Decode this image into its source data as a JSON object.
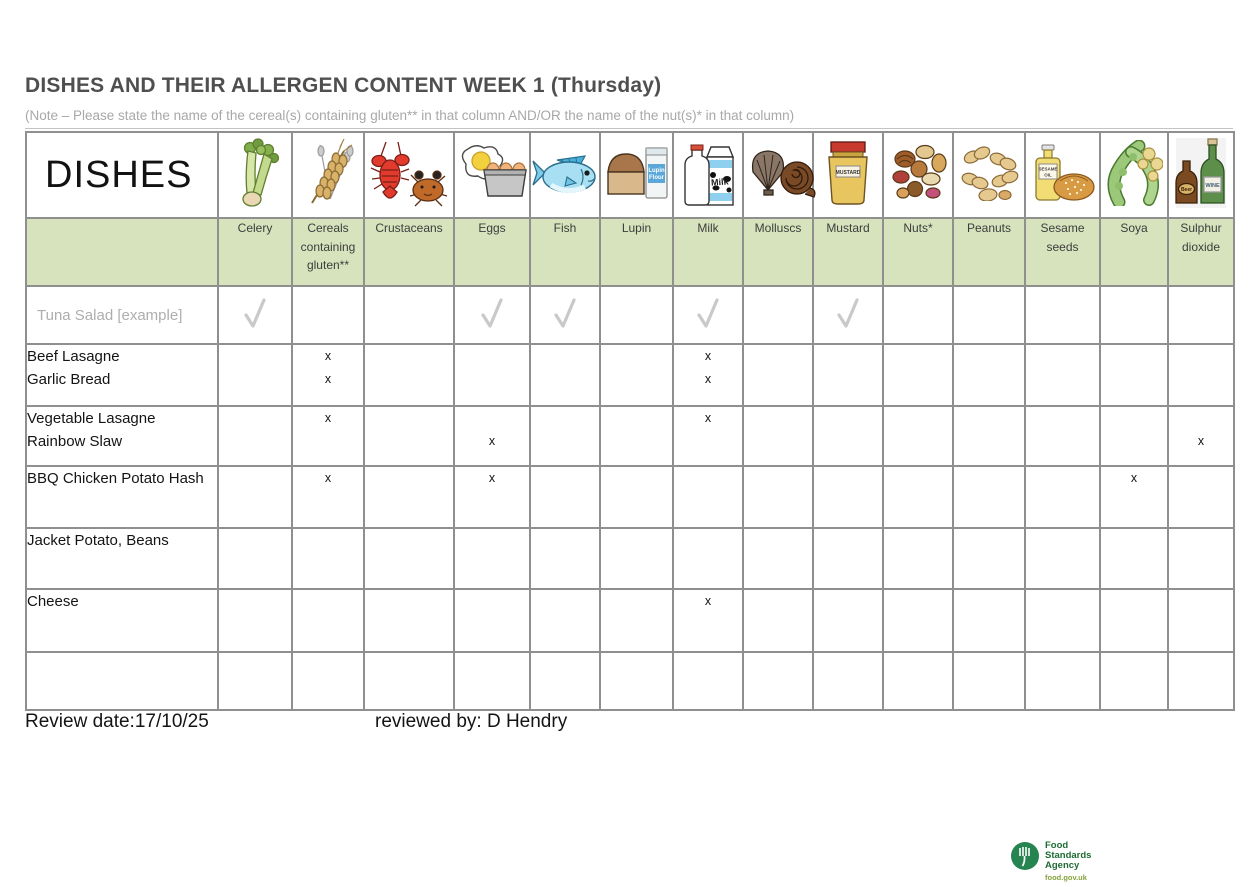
{
  "title": "DISHES AND THEIR ALLERGEN CONTENT WEEK 1 (Thursday)",
  "note": "(Note – Please state the name of the cereal(s) containing gluten** in that column AND/OR the name of the nut(s)* in that column)",
  "table": {
    "dishes_label": "DISHES",
    "columns": [
      {
        "id": "celery",
        "label": "Celery",
        "icon": "celery-icon",
        "icon_texts": []
      },
      {
        "id": "cereals_gluten",
        "label": "Cereals containing gluten**",
        "icon": "wheat-icon",
        "icon_texts": []
      },
      {
        "id": "crustaceans",
        "label": "Crustaceans",
        "icon": "crustaceans-icon",
        "icon_texts": []
      },
      {
        "id": "eggs",
        "label": "Eggs",
        "icon": "eggs-icon",
        "icon_texts": []
      },
      {
        "id": "fish",
        "label": "Fish",
        "icon": "fish-icon",
        "icon_texts": []
      },
      {
        "id": "lupin",
        "label": "Lupin",
        "icon": "lupin-icon",
        "icon_texts": [
          "Lupin",
          "Flour"
        ]
      },
      {
        "id": "milk",
        "label": "Milk",
        "icon": "milk-icon",
        "icon_texts": [
          "Milk"
        ]
      },
      {
        "id": "molluscs",
        "label": "Molluscs",
        "icon": "molluscs-icon",
        "icon_texts": []
      },
      {
        "id": "mustard",
        "label": "Mustard",
        "icon": "mustard-icon",
        "icon_texts": [
          "MUSTARD"
        ]
      },
      {
        "id": "nuts",
        "label": "Nuts*",
        "icon": "nuts-icon",
        "icon_texts": []
      },
      {
        "id": "peanuts",
        "label": "Peanuts",
        "icon": "peanuts-icon",
        "icon_texts": []
      },
      {
        "id": "sesame_seeds",
        "label": "Sesame seeds",
        "icon": "sesame-seeds-icon",
        "icon_texts": [
          "SESAME",
          "OIL"
        ]
      },
      {
        "id": "soya",
        "label": "Soya",
        "icon": "soya-icon",
        "icon_texts": []
      },
      {
        "id": "sulphur_dioxide",
        "label": "Sulphur dioxide",
        "icon": "sulphur-dioxide-icon",
        "icon_texts": [
          "Beer",
          "WINE"
        ]
      }
    ],
    "rows": [
      {
        "variant": "example",
        "name_lines": [
          "Tuna Salad [example]"
        ],
        "marks": {
          "celery": [
            "check"
          ],
          "eggs": [
            "check"
          ],
          "fish": [
            "check"
          ],
          "milk": [
            "check"
          ],
          "mustard": [
            "check"
          ]
        }
      },
      {
        "variant": "normal",
        "name_lines": [
          "Beef Lasagne",
          "Garlic Bread"
        ],
        "marks": {
          "cereals_gluten": [
            "x",
            "x"
          ],
          "milk": [
            "x",
            "x"
          ]
        }
      },
      {
        "variant": "normal",
        "name_lines": [
          "Vegetable Lasagne",
          "Rainbow Slaw"
        ],
        "marks": {
          "cereals_gluten": [
            "x",
            ""
          ],
          "milk": [
            "x",
            ""
          ],
          "eggs": [
            "",
            "x"
          ],
          "sulphur_dioxide": [
            "",
            "x"
          ]
        }
      },
      {
        "variant": "normal",
        "name_lines": [
          "BBQ Chicken Potato Hash"
        ],
        "marks": {
          "cereals_gluten": [
            "x"
          ],
          "eggs": [
            "x"
          ],
          "soya": [
            "x"
          ]
        }
      },
      {
        "variant": "normal",
        "name_lines": [
          "Jacket Potato, Beans"
        ],
        "marks": {}
      },
      {
        "variant": "normal",
        "name_lines": [
          "Cheese"
        ],
        "marks": {
          "milk": [
            "x"
          ]
        }
      },
      {
        "variant": "normal",
        "name_lines": [],
        "marks": {}
      }
    ]
  },
  "footer": {
    "review_date": "Review date:17/10/25",
    "reviewed_by": "reviewed by: D Hendry"
  },
  "logo": {
    "name_lines": [
      "Food",
      "Standards",
      "Agency"
    ],
    "url": "food.gov.uk"
  },
  "colors": {
    "header_green": "#d6e3bc",
    "grid_gray": "#8f8f8f",
    "check_gray": "#c9c9c9",
    "title_gray": "#4f4f4f",
    "note_gray": "#a8a8a8",
    "fsa_green": "#268450",
    "fsa_url_green": "#86a33c"
  }
}
